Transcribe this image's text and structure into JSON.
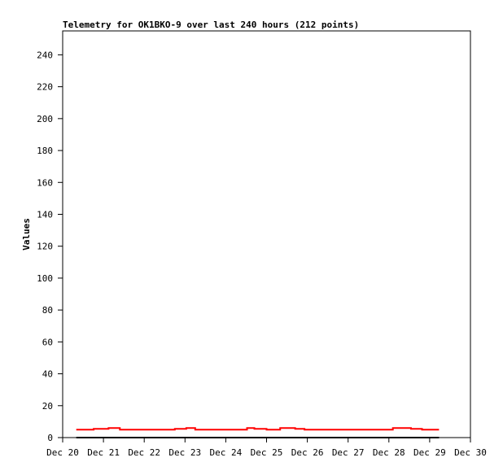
{
  "chart_data": {
    "type": "line",
    "title": "Telemetry for OK1BKO-9 over last 240 hours (212 points)",
    "xlabel": "",
    "ylabel": "Values",
    "ylim": [
      0,
      255
    ],
    "yticks": [
      0,
      20,
      40,
      60,
      80,
      100,
      120,
      140,
      160,
      180,
      200,
      220,
      240
    ],
    "xlim": [
      "Dec 20 00:00",
      "Dec 30 00:00"
    ],
    "xticks": [
      "Dec 20",
      "Dec 21",
      "Dec 22",
      "Dec 23",
      "Dec 24",
      "Dec 25",
      "Dec 26",
      "Dec 27",
      "Dec 28",
      "Dec 29",
      "Dec 30"
    ],
    "grid": false,
    "series": [
      {
        "color": "#ff0000",
        "step": true,
        "points": [
          [
            "Dec 20 08:00",
            5
          ],
          [
            "Dec 20 18:15",
            5.5
          ],
          [
            "Dec 21 03:00",
            6
          ],
          [
            "Dec 21 09:40",
            5
          ],
          [
            "Dec 22 18:00",
            5.5
          ],
          [
            "Dec 23 00:45",
            6
          ],
          [
            "Dec 23 06:00",
            5
          ],
          [
            "Dec 24 12:30",
            6
          ],
          [
            "Dec 24 16:50",
            5.5
          ],
          [
            "Dec 25 00:00",
            5
          ],
          [
            "Dec 25 08:00",
            6
          ],
          [
            "Dec 25 16:50",
            5.5
          ],
          [
            "Dec 25 22:20",
            5
          ],
          [
            "Dec 28 02:20",
            6
          ],
          [
            "Dec 28 13:00",
            5.5
          ],
          [
            "Dec 28 19:30",
            5
          ],
          [
            "Dec 29 05:30",
            5
          ]
        ]
      },
      {
        "color": "#000000",
        "step": true,
        "points": [
          [
            "Dec 20 08:00",
            0
          ],
          [
            "Dec 29 05:30",
            0
          ]
        ]
      }
    ]
  }
}
